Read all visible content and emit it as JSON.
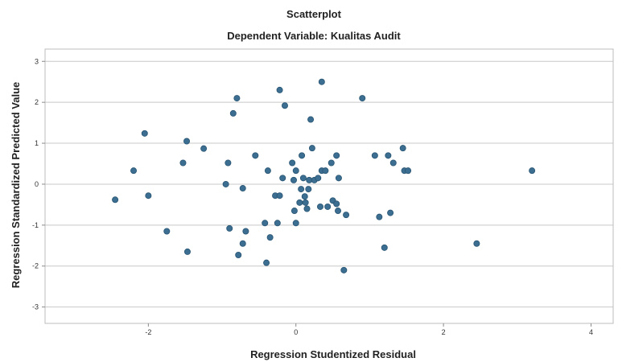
{
  "chart_data": {
    "type": "scatter",
    "title": "Scatterplot",
    "subtitle": "Dependent Variable: Kualitas Audit",
    "xlabel": "Regression Studentized Residual",
    "ylabel": "Regression Standardized Predicted Value",
    "xlim": [
      -3.4,
      4.3
    ],
    "ylim": [
      -3.4,
      3.3
    ],
    "xticks": [
      -2,
      0,
      2,
      4
    ],
    "yticks": [
      -3,
      -2,
      -1,
      0,
      1,
      2,
      3
    ],
    "grid": "horizontal",
    "legend": "none",
    "point_color": "#3b6e91",
    "points": [
      {
        "x": -2.45,
        "y": -0.38
      },
      {
        "x": -2.2,
        "y": 0.33
      },
      {
        "x": -2.05,
        "y": 1.24
      },
      {
        "x": -2.0,
        "y": -0.28
      },
      {
        "x": -1.75,
        "y": -1.15
      },
      {
        "x": -1.53,
        "y": 0.52
      },
      {
        "x": -1.48,
        "y": 1.05
      },
      {
        "x": -1.47,
        "y": -1.65
      },
      {
        "x": -1.25,
        "y": 0.87
      },
      {
        "x": -0.95,
        "y": 0.0
      },
      {
        "x": -0.92,
        "y": 0.52
      },
      {
        "x": -0.9,
        "y": -1.08
      },
      {
        "x": -0.85,
        "y": 1.73
      },
      {
        "x": -0.8,
        "y": 2.1
      },
      {
        "x": -0.78,
        "y": -1.73
      },
      {
        "x": -0.72,
        "y": -0.1
      },
      {
        "x": -0.72,
        "y": -1.45
      },
      {
        "x": -0.68,
        "y": -1.15
      },
      {
        "x": -0.55,
        "y": 0.7
      },
      {
        "x": -0.42,
        "y": -0.95
      },
      {
        "x": -0.4,
        "y": -1.92
      },
      {
        "x": -0.38,
        "y": 0.33
      },
      {
        "x": -0.35,
        "y": -1.3
      },
      {
        "x": -0.28,
        "y": -0.28
      },
      {
        "x": -0.25,
        "y": -0.95
      },
      {
        "x": -0.22,
        "y": -0.28
      },
      {
        "x": -0.22,
        "y": 2.3
      },
      {
        "x": -0.18,
        "y": 0.15
      },
      {
        "x": -0.15,
        "y": 1.92
      },
      {
        "x": -0.05,
        "y": 0.52
      },
      {
        "x": -0.03,
        "y": 0.1
      },
      {
        "x": -0.02,
        "y": -0.65
      },
      {
        "x": 0.0,
        "y": 0.33
      },
      {
        "x": 0.0,
        "y": -0.95
      },
      {
        "x": 0.05,
        "y": -0.45
      },
      {
        "x": 0.07,
        "y": -0.12
      },
      {
        "x": 0.08,
        "y": 0.7
      },
      {
        "x": 0.1,
        "y": 0.15
      },
      {
        "x": 0.12,
        "y": -0.3
      },
      {
        "x": 0.13,
        "y": -0.45
      },
      {
        "x": 0.15,
        "y": -0.6
      },
      {
        "x": 0.17,
        "y": -0.12
      },
      {
        "x": 0.18,
        "y": 0.1
      },
      {
        "x": 0.2,
        "y": 1.58
      },
      {
        "x": 0.22,
        "y": 0.88
      },
      {
        "x": 0.25,
        "y": 0.1
      },
      {
        "x": 0.3,
        "y": 0.15
      },
      {
        "x": 0.33,
        "y": -0.55
      },
      {
        "x": 0.35,
        "y": 0.33
      },
      {
        "x": 0.35,
        "y": 2.5
      },
      {
        "x": 0.4,
        "y": 0.33
      },
      {
        "x": 0.43,
        "y": -0.55
      },
      {
        "x": 0.48,
        "y": 0.52
      },
      {
        "x": 0.5,
        "y": -0.4
      },
      {
        "x": 0.55,
        "y": 0.7
      },
      {
        "x": 0.55,
        "y": -0.48
      },
      {
        "x": 0.57,
        "y": -0.65
      },
      {
        "x": 0.58,
        "y": 0.15
      },
      {
        "x": 0.65,
        "y": -2.1
      },
      {
        "x": 0.68,
        "y": -0.75
      },
      {
        "x": 0.9,
        "y": 2.1
      },
      {
        "x": 1.07,
        "y": 0.7
      },
      {
        "x": 1.13,
        "y": -0.8
      },
      {
        "x": 1.2,
        "y": -1.55
      },
      {
        "x": 1.25,
        "y": 0.7
      },
      {
        "x": 1.28,
        "y": -0.7
      },
      {
        "x": 1.32,
        "y": 0.52
      },
      {
        "x": 1.45,
        "y": 0.88
      },
      {
        "x": 1.47,
        "y": 0.33
      },
      {
        "x": 1.52,
        "y": 0.33
      },
      {
        "x": 2.45,
        "y": -1.45
      },
      {
        "x": 3.2,
        "y": 0.33
      }
    ]
  }
}
